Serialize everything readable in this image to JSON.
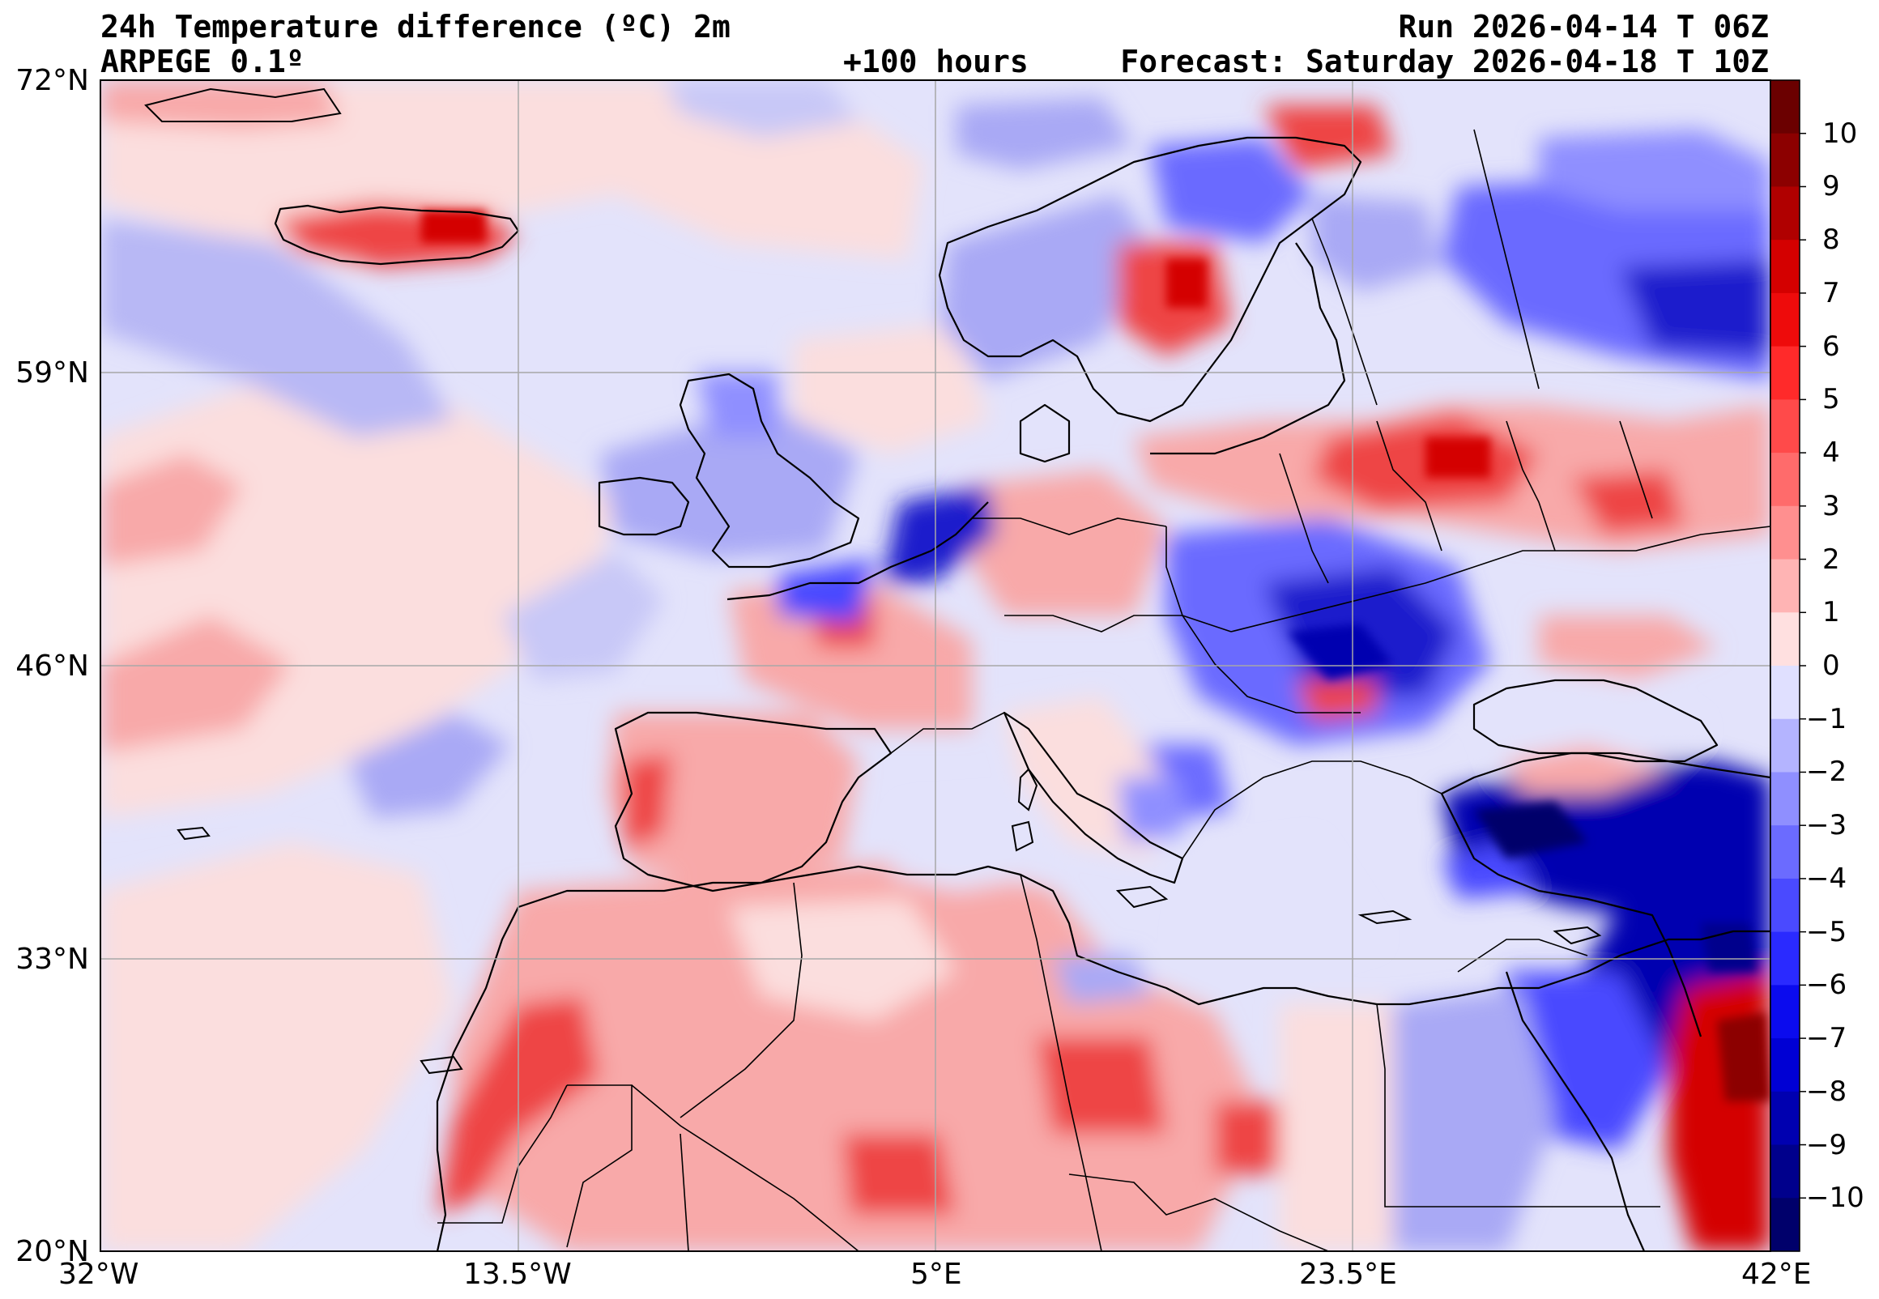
{
  "header": {
    "title": "24h Temperature difference (ºC) 2m",
    "model": "ARPEGE 0.1º",
    "lead_time": "+100 hours",
    "run": "Run 2026-04-14 T 06Z",
    "forecast": "Forecast: Saturday 2026-04-18 T 10Z"
  },
  "map": {
    "lat_labels": [
      "72°N",
      "59°N",
      "46°N",
      "33°N",
      "20°N"
    ],
    "lon_labels": [
      "32°W",
      "13.5°W",
      "5°E",
      "23.5°E",
      "42°E"
    ],
    "extent": {
      "lon_min": -32,
      "lon_max": 42,
      "lat_min": 20,
      "lat_max": 72
    },
    "grid": true
  },
  "colorbar": {
    "labels": [
      "10",
      "9",
      "8",
      "7",
      "6",
      "5",
      "4",
      "3",
      "2",
      "1",
      "0",
      "−1",
      "−2",
      "−3",
      "−4",
      "−5",
      "−6",
      "−7",
      "−8",
      "−9",
      "−10"
    ],
    "levels_top_to_bottom": [
      11,
      10,
      9,
      8,
      7,
      6,
      5,
      4,
      3,
      2,
      1,
      0,
      -1,
      -2,
      -3,
      -4,
      -5,
      -6,
      -7,
      -8,
      -9,
      -10,
      -11
    ],
    "colors_top_to_bottom": [
      "#6b0000",
      "#8c0000",
      "#b00000",
      "#d40000",
      "#ee0b0b",
      "#ff2a2a",
      "#ff4a4a",
      "#ff6b6b",
      "#ff8f8f",
      "#ffb4b4",
      "#ffe0e0",
      "#e0e0ff",
      "#b4b4ff",
      "#8f8fff",
      "#6b6bff",
      "#4a4aff",
      "#2a2aff",
      "#0b0bee",
      "#0000d4",
      "#0000b0",
      "#00008c",
      "#00006b"
    ]
  },
  "palette": {
    "sea_neutral": "#e3e3fb",
    "warm_light": "#fbdede",
    "warm_mid": "#f8a9a9",
    "warm_strong": "#ee4444",
    "cool_mid": "#a9a9f5",
    "cool_strong": "#1a1acc",
    "coast": "#000000",
    "grid": "#a0a0a0"
  }
}
